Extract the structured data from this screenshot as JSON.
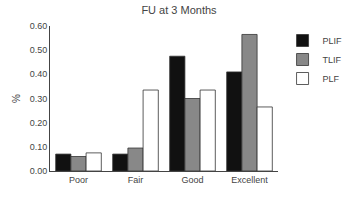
{
  "chart_data": {
    "type": "bar",
    "title": "FU at 3 Months",
    "ylabel": "%",
    "categories": [
      "Poor",
      "Fair",
      "Good",
      "Excellent"
    ],
    "series": [
      {
        "name": "PLIF",
        "color": "#111111",
        "values": [
          0.07,
          0.07,
          0.475,
          0.41
        ]
      },
      {
        "name": "TLIF",
        "color": "#888888",
        "values": [
          0.06,
          0.095,
          0.3,
          0.565
        ]
      },
      {
        "name": "PLF",
        "color": "#ffffff",
        "values": [
          0.075,
          0.335,
          0.335,
          0.265
        ]
      }
    ],
    "ylim": [
      0.0,
      0.6
    ],
    "yticks": [
      {
        "value": 0.0,
        "label": "0.00"
      },
      {
        "value": 0.1,
        "label": "0.10"
      },
      {
        "value": 0.2,
        "label": "0.20"
      },
      {
        "value": 0.3,
        "label": "0.30"
      },
      {
        "value": 0.4,
        "label": "0.40"
      },
      {
        "value": 0.5,
        "label": "0.50"
      },
      {
        "value": 0.6,
        "label": "0.60"
      }
    ],
    "grid": false,
    "legend": "right"
  }
}
